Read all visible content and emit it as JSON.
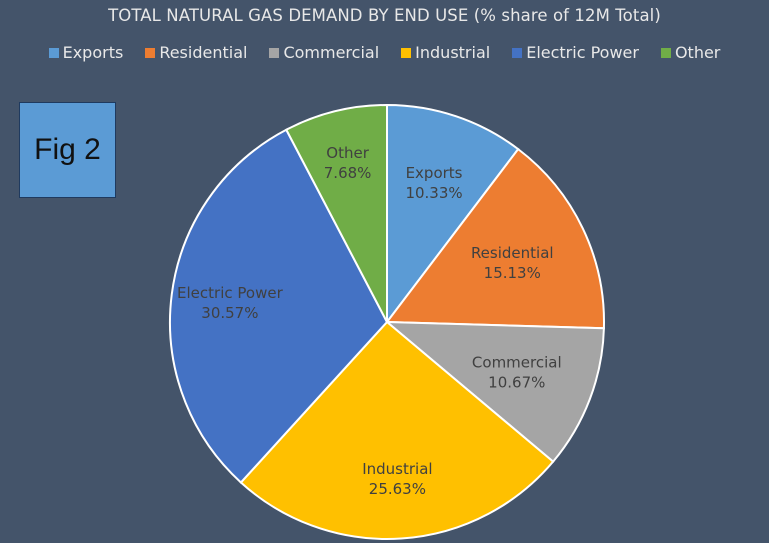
{
  "title": "TOTAL NATURAL GAS DEMAND BY END USE (% share of 12M Total)",
  "fig_label": "Fig 2",
  "chart_data": {
    "type": "pie",
    "title": "TOTAL NATURAL GAS DEMAND BY END USE (% share of 12M Total)",
    "legend_position": "top",
    "categories": [
      "Exports",
      "Residential",
      "Commercial",
      "Industrial",
      "Electric Power",
      "Other"
    ],
    "values": [
      10.33,
      15.13,
      10.67,
      25.63,
      30.57,
      7.68
    ],
    "labels": [
      "10.33%",
      "15.13%",
      "10.67%",
      "25.63%",
      "30.57%",
      "7.68%"
    ],
    "colors": [
      "#5b9bd5",
      "#ed7d31",
      "#a5a5a5",
      "#ffc000",
      "#4472c4",
      "#70ad47"
    ]
  }
}
